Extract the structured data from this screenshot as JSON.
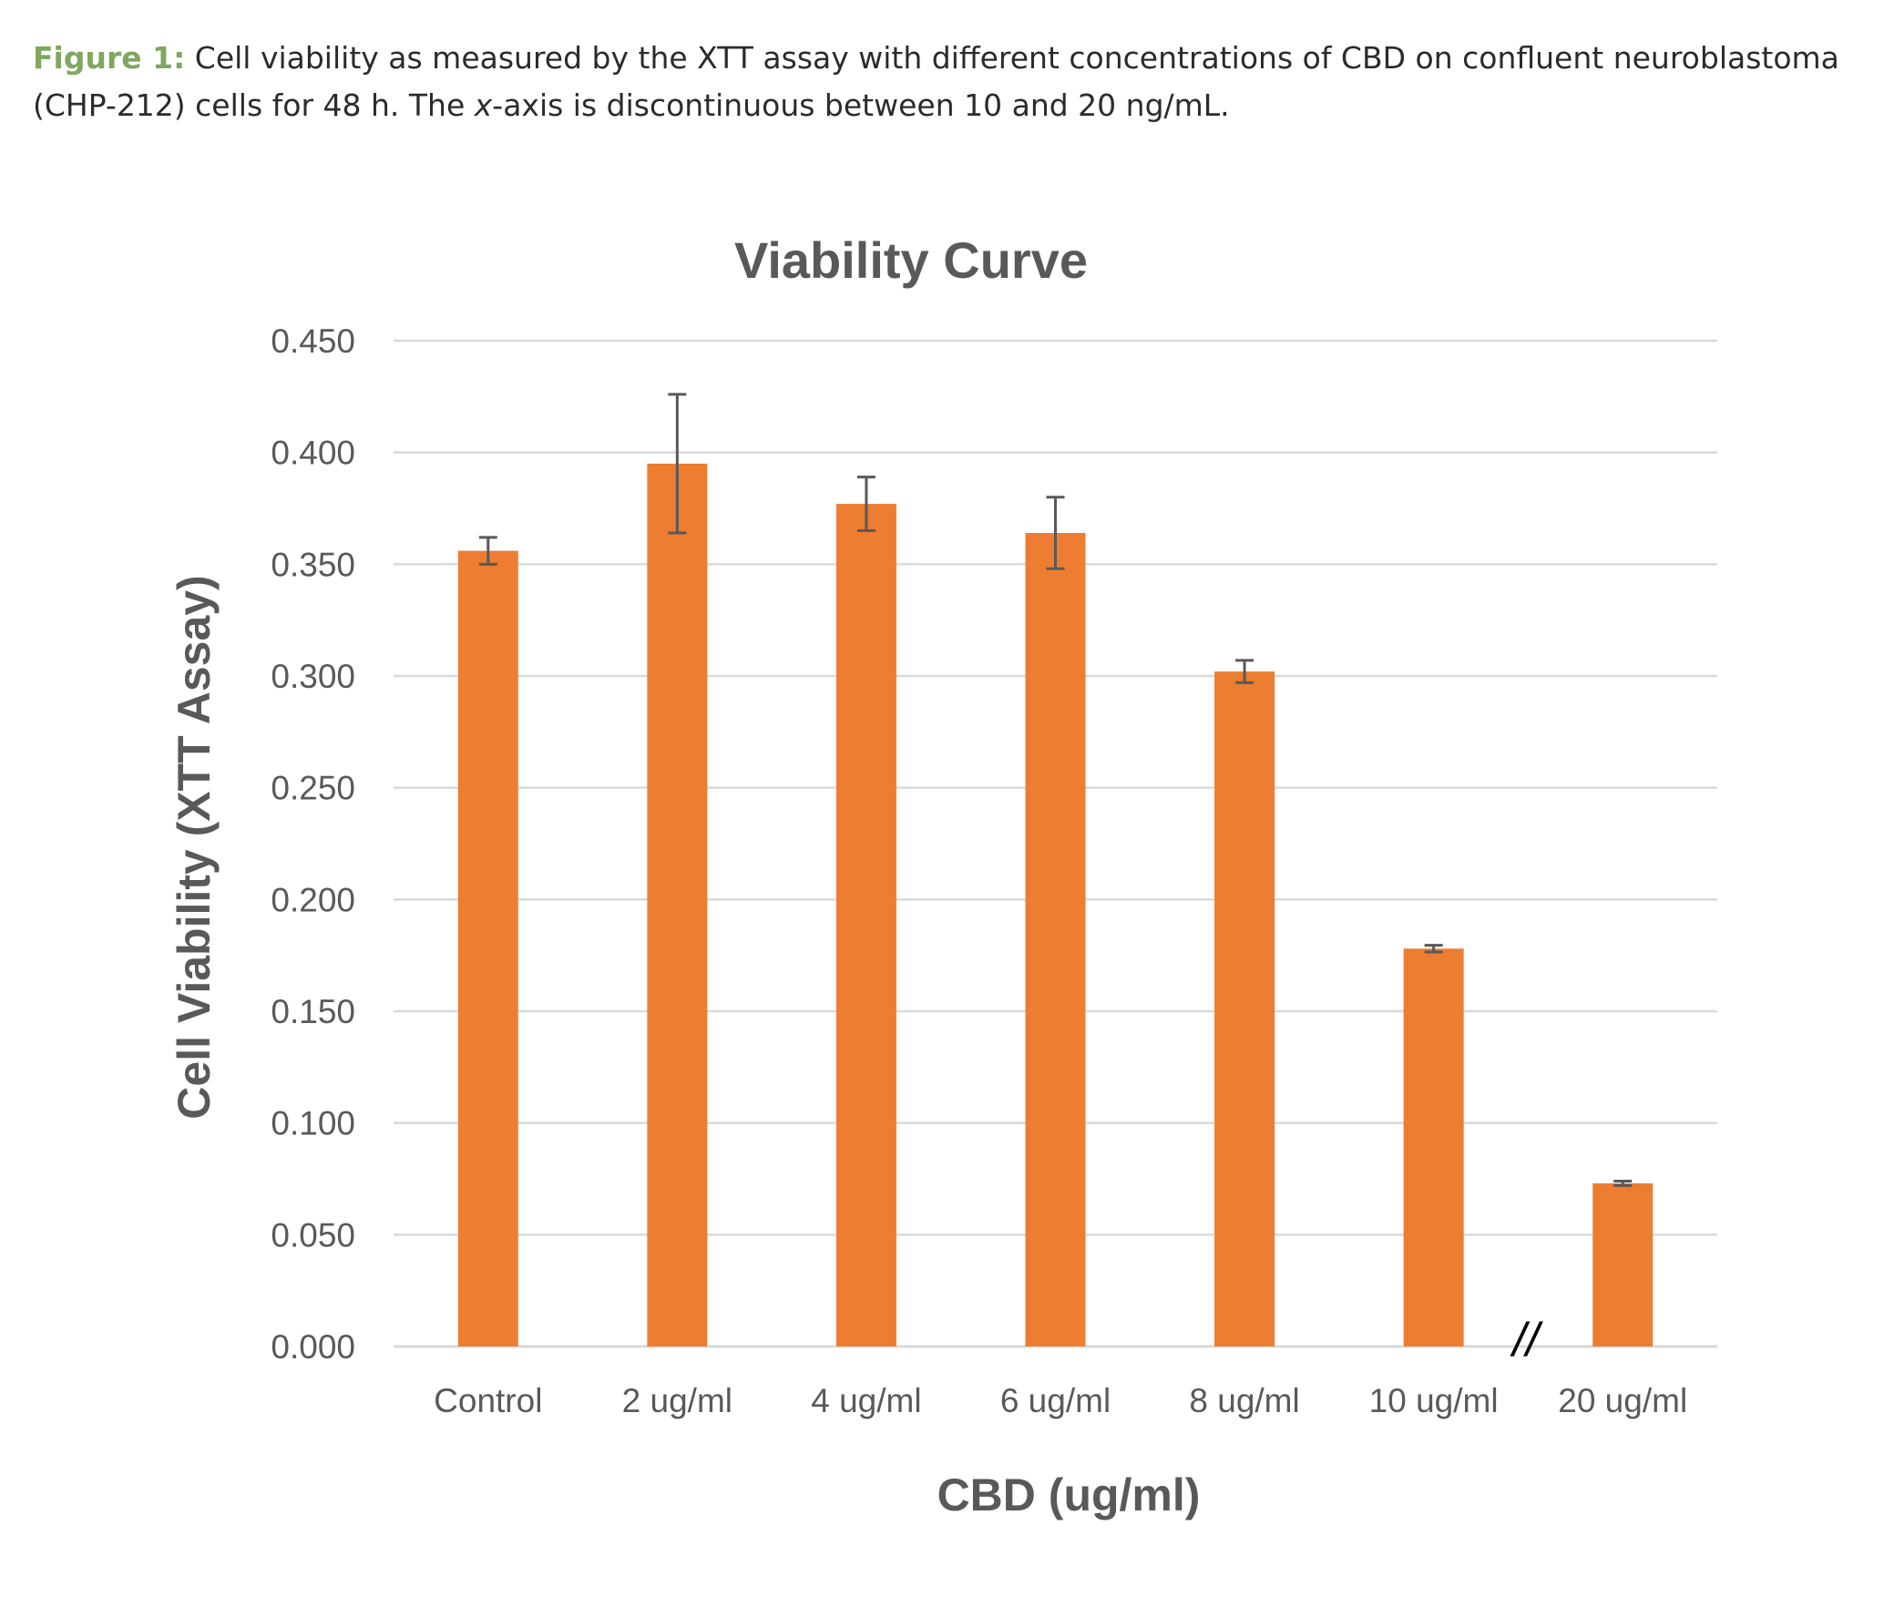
{
  "caption": {
    "label": "Figure 1:",
    "text_before_italic": " Cell viability as measured by the XTT assay with different concentrations of CBD on confluent neuroblastoma (CHP-212) cells for 48 h. The ",
    "italic_text": "x",
    "text_after_italic": "-axis is discontinuous between 10 and 20 ng/mL."
  },
  "colors": {
    "bar": "#ed7d31",
    "grid": "#d9d9d9",
    "axis_text": "#595959",
    "error_bar": "#595959",
    "caption_label": "#7fa760"
  },
  "chart_data": {
    "type": "bar",
    "title": "Viability Curve",
    "xlabel": "CBD (ug/ml)",
    "ylabel": "Cell Viability (XTT Assay)",
    "categories": [
      "Control",
      "2 ug/ml",
      "4 ug/ml",
      "6 ug/ml",
      "8 ug/ml",
      "10 ug/ml",
      "20 ug/ml"
    ],
    "values": [
      0.356,
      0.395,
      0.377,
      0.364,
      0.302,
      0.178,
      0.073
    ],
    "errors": [
      0.006,
      0.031,
      0.012,
      0.016,
      0.005,
      0.0015,
      0.001
    ],
    "ylim": [
      0,
      0.45
    ],
    "yticks": [
      "0.000",
      "0.050",
      "0.100",
      "0.150",
      "0.200",
      "0.250",
      "0.300",
      "0.350",
      "0.400",
      "0.450"
    ],
    "grid": true,
    "axis_break_marker": "//",
    "axis_break_between": [
      "10 ug/ml",
      "20 ug/ml"
    ]
  }
}
